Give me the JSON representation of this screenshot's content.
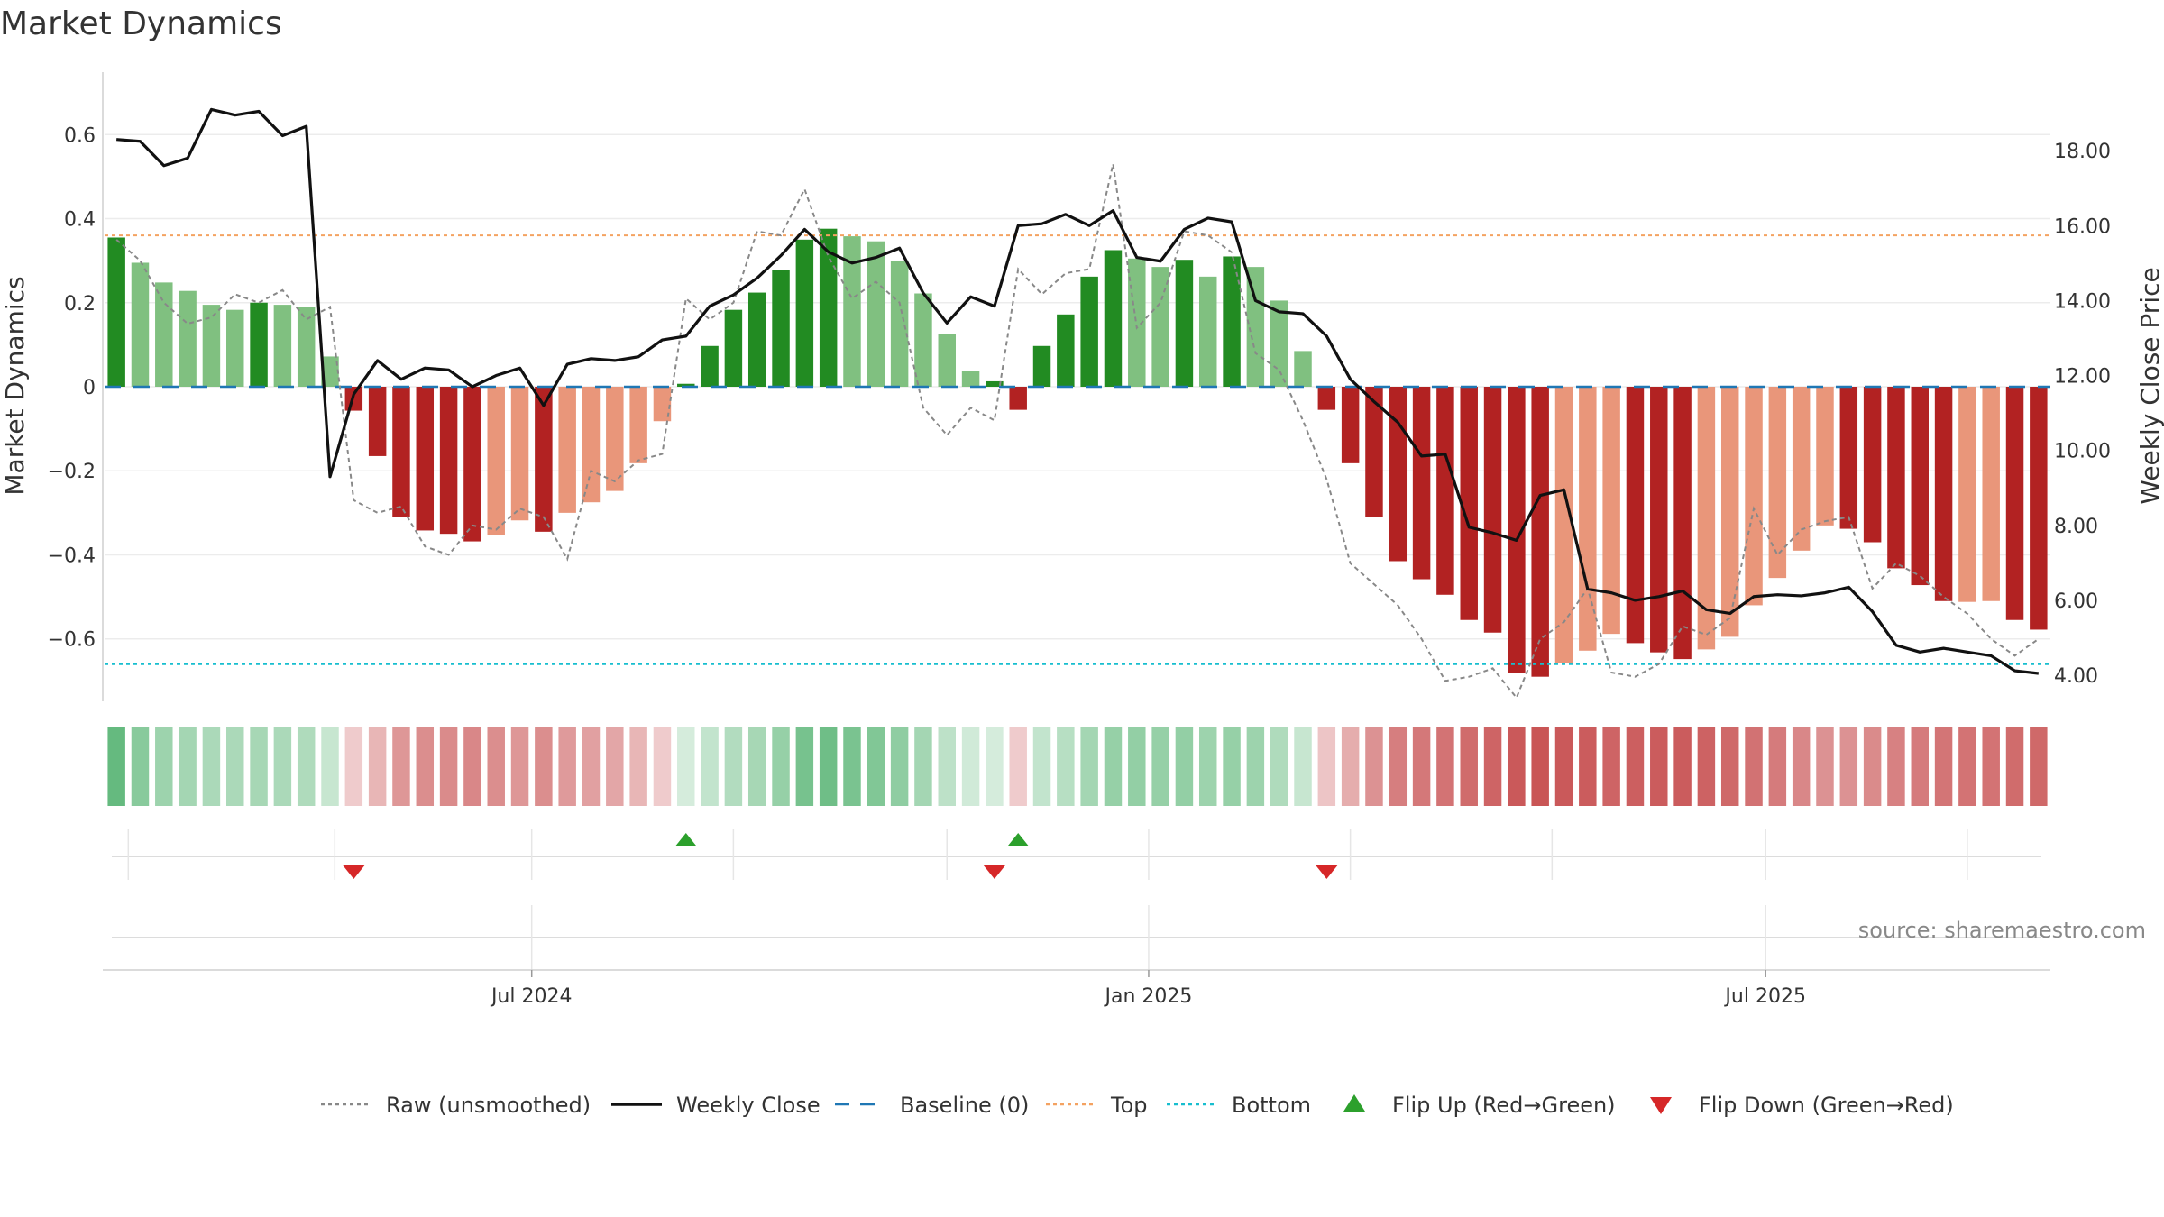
{
  "chart_data": {
    "type": "bar",
    "title": "Market Dynamics",
    "ylabel_left": "Market Dynamics",
    "ylabel_right": "Weekly Close Price",
    "left_ylim": [
      -0.74,
      0.74
    ],
    "right_ylim": [
      3.4,
      20.0
    ],
    "left_ticks": [
      0.6,
      0.4,
      0.2,
      0,
      -0.2,
      -0.4,
      -0.6
    ],
    "left_tick_labels": [
      "0.6",
      "0.4",
      "0.2",
      "0",
      "−0.2",
      "−0.4",
      "−0.6"
    ],
    "right_ticks": [
      18,
      16,
      14,
      12,
      10,
      8,
      6,
      4
    ],
    "right_tick_labels": [
      "18.00",
      "16.00",
      "14.00",
      "12.00",
      "10.00",
      "8.00",
      "6.00",
      "4.00"
    ],
    "x_tick_labels": [
      {
        "label": "Jul 2024",
        "week": 18
      },
      {
        "label": "Jan 2025",
        "week": 44
      },
      {
        "label": "Jul 2025",
        "week": 70
      }
    ],
    "top_line": 0.36,
    "bottom_line": -0.66,
    "baseline": 0,
    "grid": true,
    "legend_position": "bottom",
    "bars": [
      0.355,
      0.295,
      0.248,
      0.228,
      0.195,
      0.183,
      0.2,
      0.195,
      0.19,
      0.072,
      -0.057,
      -0.165,
      -0.31,
      -0.342,
      -0.35,
      -0.368,
      -0.352,
      -0.318,
      -0.345,
      -0.3,
      -0.275,
      -0.248,
      -0.182,
      -0.082,
      0.007,
      0.097,
      0.183,
      0.224,
      0.278,
      0.35,
      0.376,
      0.358,
      0.346,
      0.299,
      0.222,
      0.125,
      0.037,
      0.013,
      -0.055,
      0.097,
      0.172,
      0.262,
      0.325,
      0.305,
      0.285,
      0.302,
      0.262,
      0.31,
      0.285,
      0.205,
      0.085,
      -0.055,
      -0.182,
      -0.31,
      -0.415,
      -0.458,
      -0.495,
      -0.555,
      -0.585,
      -0.68,
      -0.69,
      -0.657,
      -0.628,
      -0.588,
      -0.61,
      -0.632,
      -0.648,
      -0.625,
      -0.595,
      -0.52,
      -0.455,
      -0.39,
      -0.33,
      -0.338,
      -0.37,
      -0.432,
      -0.472,
      -0.51,
      -0.512,
      -0.51,
      -0.555,
      -0.578
    ],
    "bar_shade": [
      "d",
      "l",
      "l",
      "l",
      "l",
      "l",
      "d",
      "l",
      "l",
      "l",
      "d",
      "d",
      "d",
      "d",
      "d",
      "d",
      "l",
      "l",
      "d",
      "l",
      "l",
      "l",
      "l",
      "l",
      "d",
      "d",
      "d",
      "d",
      "d",
      "d",
      "d",
      "l",
      "l",
      "l",
      "l",
      "l",
      "l",
      "d",
      "d",
      "d",
      "d",
      "d",
      "d",
      "l",
      "l",
      "d",
      "l",
      "d",
      "l",
      "l",
      "l",
      "d",
      "d",
      "d",
      "d",
      "d",
      "d",
      "d",
      "d",
      "d",
      "d",
      "l",
      "l",
      "l",
      "d",
      "d",
      "d",
      "l",
      "l",
      "l",
      "l",
      "l",
      "l",
      "d",
      "d",
      "d",
      "d",
      "d",
      "l",
      "l",
      "d",
      "d"
    ],
    "heat_strength": [
      0.95,
      0.7,
      0.55,
      0.5,
      0.45,
      0.45,
      0.48,
      0.45,
      0.42,
      0.25,
      0.18,
      0.32,
      0.52,
      0.58,
      0.6,
      0.62,
      0.58,
      0.52,
      0.58,
      0.5,
      0.46,
      0.42,
      0.32,
      0.18,
      0.15,
      0.28,
      0.4,
      0.48,
      0.6,
      0.82,
      0.88,
      0.8,
      0.75,
      0.65,
      0.5,
      0.32,
      0.18,
      0.15,
      0.18,
      0.28,
      0.36,
      0.5,
      0.6,
      0.62,
      0.6,
      0.62,
      0.55,
      0.6,
      0.55,
      0.42,
      0.25,
      0.22,
      0.38,
      0.55,
      0.68,
      0.72,
      0.75,
      0.8,
      0.85,
      0.92,
      0.95,
      0.92,
      0.9,
      0.85,
      0.88,
      0.9,
      0.9,
      0.86,
      0.82,
      0.76,
      0.7,
      0.62,
      0.55,
      0.55,
      0.6,
      0.66,
      0.7,
      0.74,
      0.75,
      0.75,
      0.8,
      0.82
    ],
    "weekly_close": [
      18.3,
      18.25,
      17.6,
      17.8,
      19.1,
      18.95,
      19.05,
      18.4,
      18.65,
      9.3,
      11.5,
      12.4,
      11.9,
      12.2,
      12.15,
      11.7,
      12.0,
      12.2,
      11.2,
      12.3,
      12.45,
      12.4,
      12.5,
      12.95,
      13.05,
      13.85,
      14.15,
      14.6,
      15.2,
      15.9,
      15.3,
      15.0,
      15.15,
      15.4,
      14.2,
      13.4,
      14.1,
      13.85,
      16.0,
      16.05,
      16.3,
      16.0,
      16.4,
      15.15,
      15.05,
      15.9,
      16.2,
      16.1,
      14.0,
      13.7,
      13.65,
      13.05,
      11.9,
      11.3,
      10.75,
      9.85,
      9.9,
      7.95,
      7.8,
      7.6,
      8.8,
      8.95,
      6.3,
      6.2,
      6.0,
      6.1,
      6.25,
      5.75,
      5.65,
      6.1,
      6.15,
      6.12,
      6.2,
      6.35,
      5.7,
      4.8,
      4.62,
      4.72,
      4.62,
      4.52,
      4.12,
      4.05
    ],
    "raw_unsmoothed": [
      0.35,
      0.3,
      0.2,
      0.15,
      0.165,
      0.22,
      0.2,
      0.23,
      0.16,
      0.19,
      -0.27,
      -0.3,
      -0.285,
      -0.38,
      -0.4,
      -0.33,
      -0.34,
      -0.29,
      -0.31,
      -0.41,
      -0.2,
      -0.225,
      -0.175,
      -0.16,
      0.21,
      0.16,
      0.2,
      0.37,
      0.36,
      0.47,
      0.31,
      0.21,
      0.25,
      0.2,
      -0.05,
      -0.115,
      -0.05,
      -0.08,
      0.28,
      0.22,
      0.27,
      0.28,
      0.53,
      0.14,
      0.2,
      0.37,
      0.36,
      0.32,
      0.08,
      0.04,
      -0.08,
      -0.22,
      -0.42,
      -0.47,
      -0.52,
      -0.6,
      -0.7,
      -0.69,
      -0.67,
      -0.74,
      -0.6,
      -0.56,
      -0.48,
      -0.68,
      -0.69,
      -0.66,
      -0.57,
      -0.59,
      -0.55,
      -0.29,
      -0.4,
      -0.34,
      -0.32,
      -0.31,
      -0.48,
      -0.42,
      -0.45,
      -0.5,
      -0.54,
      -0.6,
      -0.64,
      -0.6
    ],
    "flip_up_weeks": [
      24.5,
      38.5
    ],
    "flip_down_weeks": [
      10.5,
      37.5,
      51.5
    ],
    "event_gridlines": [
      1,
      9.7,
      18,
      26.5,
      35.5,
      44,
      52.5,
      61,
      70,
      78.5
    ],
    "legend": [
      {
        "label": "Raw (unsmoothed)",
        "style": "dotted",
        "color": "#888888"
      },
      {
        "label": "Weekly Close",
        "style": "solid",
        "color": "#111111"
      },
      {
        "label": "Baseline (0)",
        "style": "dashed",
        "color": "#1f77b4"
      },
      {
        "label": "Top",
        "style": "dotted",
        "color": "#f4a261"
      },
      {
        "label": "Bottom",
        "style": "dotted",
        "color": "#17becf"
      },
      {
        "label": "Flip Up (Red→Green)",
        "style": "triangle-up",
        "color": "#2ca02c"
      },
      {
        "label": "Flip Down (Green→Red)",
        "style": "triangle-down",
        "color": "#d62728"
      }
    ],
    "colors": {
      "green_dark": "#228b22",
      "green_light": "#80c080",
      "red_dark": "#b22222",
      "red_light": "#e9967a",
      "top_line": "#f4a261",
      "bottom_line": "#17becf",
      "baseline": "#1f77b4",
      "close_line": "#111111",
      "raw_line": "#888888",
      "flip_up": "#2ca02c",
      "flip_down": "#d62728"
    }
  },
  "source_text": "source: sharemaestro.com"
}
